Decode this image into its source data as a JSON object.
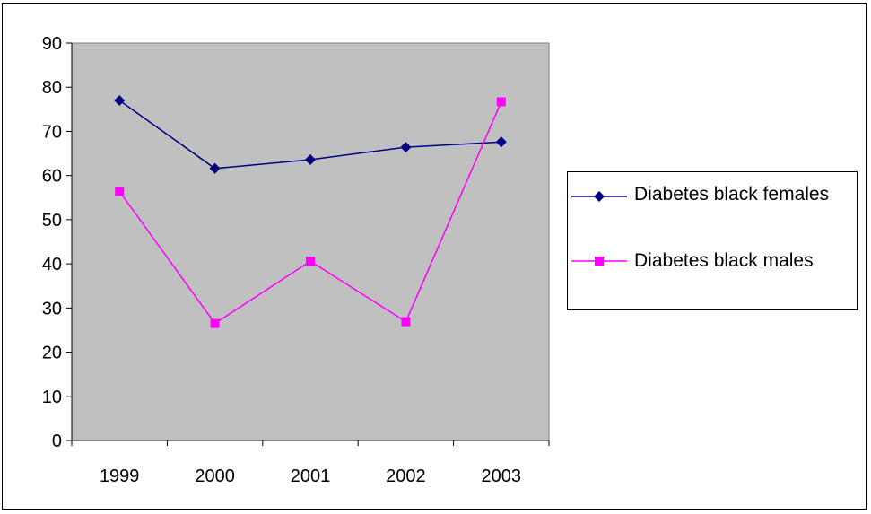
{
  "chart_data": {
    "type": "line",
    "title": "",
    "xlabel": "",
    "ylabel": "",
    "categories": [
      "1999",
      "2000",
      "2001",
      "2002",
      "2003"
    ],
    "ylim": [
      0,
      90
    ],
    "yticks": [
      0,
      10,
      20,
      30,
      40,
      50,
      60,
      70,
      80,
      90
    ],
    "grid": false,
    "legend_position": "right",
    "plot_background": "#c0c0c0",
    "series": [
      {
        "name": "Diabetes black females",
        "values": [
          77.0,
          61.6,
          63.6,
          66.4,
          67.6
        ],
        "color": "#000080",
        "marker": "diamond"
      },
      {
        "name": "Diabetes black males",
        "values": [
          56.4,
          26.5,
          40.6,
          26.9,
          76.7
        ],
        "color": "#ff00ff",
        "marker": "square"
      }
    ]
  }
}
